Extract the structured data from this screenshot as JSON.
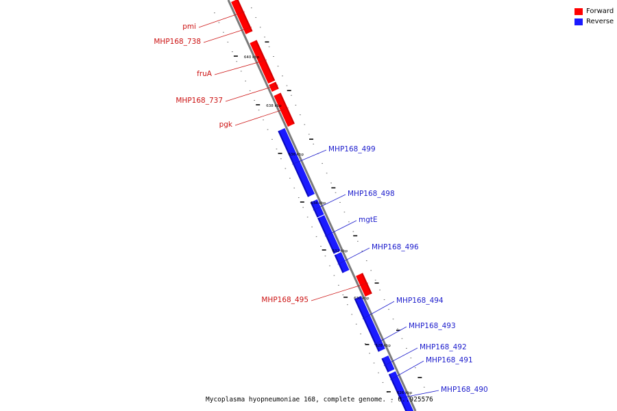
{
  "colors": {
    "forward": "#ff0000",
    "forward_dark": "#b00000",
    "forward_label": "#cc1111",
    "reverse": "#1a1aff",
    "reverse_dark": "#00008a",
    "reverse_label": "#1a1acc",
    "backbone": "#7a7a7a"
  },
  "legend": [
    {
      "label": "Forward",
      "color": "#ff0000"
    },
    {
      "label": "Reverse",
      "color": "#1a1aff"
    }
  ],
  "footer": {
    "text": "Mycoplasma hyopneumoniae 168, complete genome. - 0..925576"
  },
  "ticks": [
    "640 kbp",
    "638 kbp",
    "636 kbp",
    "634 kbp",
    "632 kbp",
    "630 kbp",
    "628 kbp",
    "626 kbp"
  ],
  "genes": [
    {
      "name": "pmi",
      "strand": "forward"
    },
    {
      "name": "MHP168_738",
      "strand": "forward"
    },
    {
      "name": "fruA",
      "strand": "forward"
    },
    {
      "name": "MHP168_737",
      "strand": "forward"
    },
    {
      "name": "pgk",
      "strand": "forward"
    },
    {
      "name": "MHP168_499",
      "strand": "reverse"
    },
    {
      "name": "MHP168_498",
      "strand": "reverse"
    },
    {
      "name": "mgtE",
      "strand": "reverse"
    },
    {
      "name": "MHP168_496",
      "strand": "reverse"
    },
    {
      "name": "MHP168_495",
      "strand": "forward"
    },
    {
      "name": "MHP168_494",
      "strand": "reverse"
    },
    {
      "name": "MHP168_493",
      "strand": "reverse"
    },
    {
      "name": "MHP168_492",
      "strand": "reverse"
    },
    {
      "name": "MHP168_491",
      "strand": "reverse"
    },
    {
      "name": "MHP168_490",
      "strand": "reverse"
    }
  ]
}
